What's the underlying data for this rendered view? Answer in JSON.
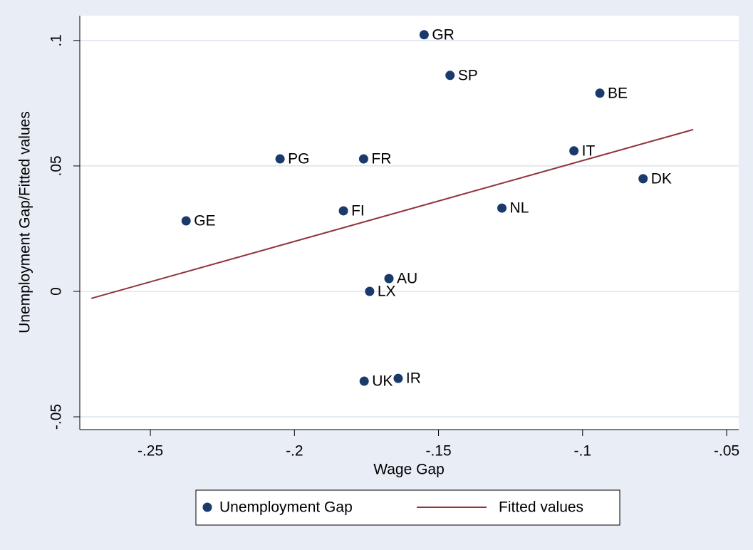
{
  "chart_data": {
    "type": "scatter",
    "xlabel": "Wage Gap",
    "ylabel": "Unemployment Gap/Fitted values",
    "series": [
      {
        "name": "Unemployment Gap",
        "type": "scatter",
        "color": "#1a3a6c",
        "x": [
          -0.155,
          -0.146,
          -0.094,
          -0.103,
          -0.079,
          -0.205,
          -0.176,
          -0.183,
          -0.128,
          -0.2376,
          -0.1672,
          -0.1739,
          -0.1758,
          -0.164
        ],
        "values": [
          0.1023,
          0.0861,
          0.079,
          0.056,
          0.0449,
          0.0528,
          0.0528,
          0.0321,
          0.0332,
          0.0281,
          0.0051,
          0,
          -0.0358,
          -0.0347
        ],
        "labels": [
          "GR",
          "SP",
          "BE",
          "IT",
          "DK",
          "PG",
          "FR",
          "FI",
          "NL",
          "GE",
          "AU",
          "LX",
          "UK",
          "IR"
        ]
      },
      {
        "name": "Fitted values",
        "type": "line",
        "color": "#90353b",
        "x": [
          -0.2705,
          -0.0616
        ],
        "values": [
          -0.0028,
          0.0645
        ]
      }
    ],
    "xlim": [
      -0.2745,
      -0.0458
    ],
    "ylim": [
      -0.0551,
      0.1099
    ],
    "xticks": [
      {
        "value": -0.25,
        "label": "-.25"
      },
      {
        "value": -0.2,
        "label": "-.2"
      },
      {
        "value": -0.15,
        "label": "-.15"
      },
      {
        "value": -0.1,
        "label": "-.1"
      },
      {
        "value": -0.05,
        "label": "-.05"
      }
    ],
    "yticks": [
      {
        "value": -0.05,
        "label": "-.05"
      },
      0,
      {
        "value": 0.05,
        "label": ".05"
      },
      {
        "value": 0.1,
        "label": ".1"
      }
    ],
    "grid": true,
    "legend": "bottom"
  }
}
